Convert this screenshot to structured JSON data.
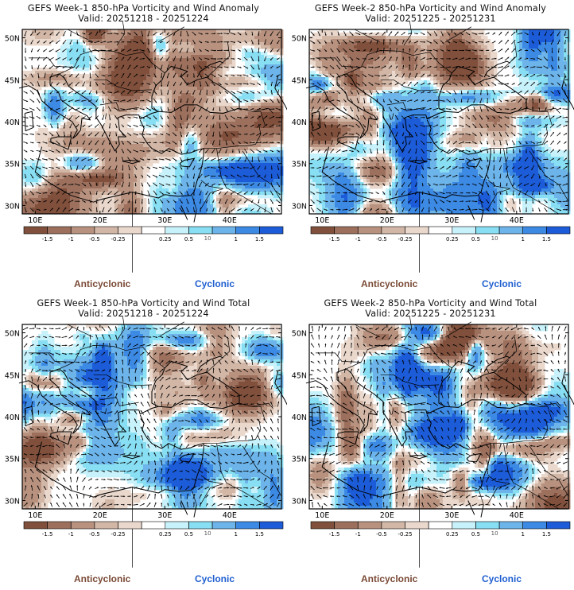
{
  "panels": [
    {
      "title_line1": "GEFS Week-1 850-hPa Vorticity and Wind Anomaly",
      "title_line2": "Valid: 20251218 - 20251224",
      "seed": 11
    },
    {
      "title_line1": "GEFS Week-2 850-hPa Vorticity and Wind Anomaly",
      "title_line2": "Valid: 20251225 - 20251231",
      "seed": 23
    },
    {
      "title_line1": "GEFS Week-1 850-hPa Vorticity and Wind Total",
      "title_line2": "Valid: 20251218 - 20251224",
      "seed": 37
    },
    {
      "title_line1": "GEFS Week-2 850-hPa Vorticity and Wind Total",
      "title_line2": "Valid: 20251225 - 20251231",
      "seed": 51
    }
  ],
  "axes": {
    "lat_labels": [
      "50N",
      "45N",
      "40N",
      "35N",
      "30N"
    ],
    "lon_labels": [
      "10E",
      "20E",
      "30E",
      "40E"
    ]
  },
  "colorbar": {
    "tick_labels": [
      "-1.5",
      "-1",
      "-0.5",
      "-0.25",
      "0.25",
      "0.5",
      "1",
      "1.5"
    ],
    "scale_note": "10",
    "colors": [
      "#80503c",
      "#9c705d",
      "#b8927f",
      "#d2b6a6",
      "#ead8cd",
      "#ffffff",
      "#c8f2fb",
      "#88def2",
      "#6cb4ea",
      "#3c8ae4",
      "#1c5cd8"
    ]
  },
  "legend": {
    "anticyclonic": "Anticyclonic",
    "cyclonic": "Cyclonic",
    "anticyclonic_color": "#7a4a36",
    "cyclonic_color": "#1f5fd0"
  }
}
